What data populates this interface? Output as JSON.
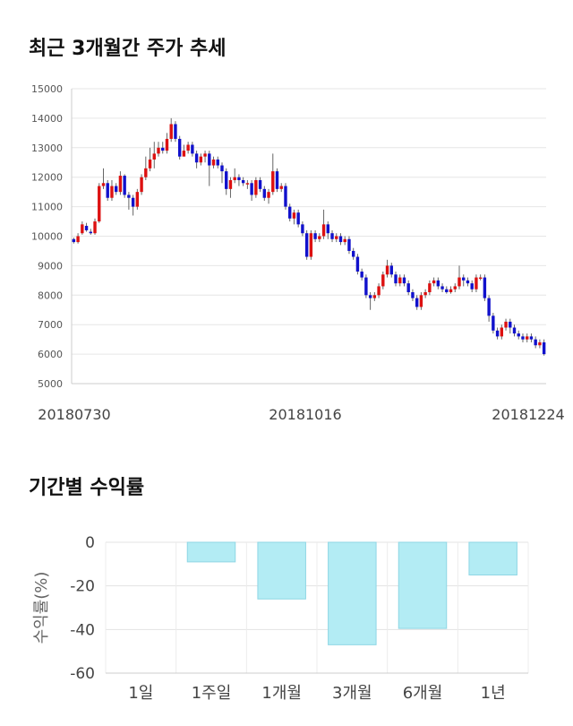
{
  "section1": {
    "title": "최근 3개월간 주가 추세"
  },
  "section2": {
    "title": "기간별 수익률"
  },
  "chart_data": [
    {
      "type": "candlestick",
      "ylim": [
        5000,
        15000
      ],
      "yticks": [
        5000,
        6000,
        7000,
        8000,
        9000,
        10000,
        11000,
        12000,
        13000,
        14000,
        15000
      ],
      "xtick_labels": [
        "20180730",
        "20181016",
        "20181224"
      ],
      "grid": true,
      "up_color": "#dd1111",
      "down_color": "#1111cc",
      "candles": [
        [
          9900,
          9800,
          9950,
          9750
        ],
        [
          9800,
          10000,
          10100,
          9750
        ],
        [
          10100,
          10400,
          10500,
          10050
        ],
        [
          10350,
          10200,
          10450,
          10150
        ],
        [
          10150,
          10100,
          10250,
          10050
        ],
        [
          10100,
          10500,
          10600,
          10050
        ],
        [
          10500,
          11700,
          11800,
          10450
        ],
        [
          11700,
          11800,
          12300,
          11600
        ],
        [
          11800,
          11300,
          11900,
          11200
        ],
        [
          11300,
          11700,
          11900,
          11200
        ],
        [
          11700,
          11500,
          11800,
          11400
        ],
        [
          11500,
          12050,
          12200,
          11400
        ],
        [
          12050,
          11400,
          12100,
          11300
        ],
        [
          11400,
          11300,
          11500,
          10900
        ],
        [
          11300,
          11000,
          11400,
          10700
        ],
        [
          11000,
          11500,
          11600,
          10900
        ],
        [
          11500,
          12000,
          12100,
          11400
        ],
        [
          12000,
          12300,
          12700,
          11900
        ],
        [
          12300,
          12600,
          13000,
          12200
        ],
        [
          12600,
          12800,
          13200,
          12300
        ],
        [
          12800,
          13000,
          13200,
          12700
        ],
        [
          13000,
          12900,
          13200,
          12800
        ],
        [
          12900,
          13300,
          13500,
          12800
        ],
        [
          13300,
          13800,
          14000,
          13200
        ],
        [
          13800,
          13300,
          13900,
          13200
        ],
        [
          13300,
          12700,
          13400,
          12600
        ],
        [
          12700,
          12900,
          13100,
          12800
        ],
        [
          12900,
          13100,
          13200,
          12800
        ],
        [
          13100,
          12800,
          13200,
          12700
        ],
        [
          12800,
          12500,
          12900,
          12300
        ],
        [
          12500,
          12700,
          12800,
          12400
        ],
        [
          12700,
          12800,
          12900,
          12500
        ],
        [
          12800,
          12400,
          12900,
          11700
        ],
        [
          12400,
          12600,
          12700,
          12300
        ],
        [
          12600,
          12400,
          12700,
          12300
        ],
        [
          12400,
          12200,
          12500,
          11800
        ],
        [
          12200,
          11600,
          12300,
          11400
        ],
        [
          11600,
          11900,
          12000,
          11300
        ],
        [
          11900,
          12000,
          12300,
          11800
        ],
        [
          12000,
          11900,
          12100,
          11700
        ],
        [
          11900,
          11800,
          12000,
          11700
        ],
        [
          11800,
          11800,
          11900,
          11600
        ],
        [
          11800,
          11400,
          11900,
          11200
        ],
        [
          11400,
          11900,
          12000,
          11300
        ],
        [
          11900,
          11600,
          12000,
          11500
        ],
        [
          11600,
          11300,
          11700,
          11200
        ],
        [
          11300,
          11500,
          11600,
          11100
        ],
        [
          11500,
          12200,
          12800,
          11400
        ],
        [
          12200,
          11600,
          12300,
          11500
        ],
        [
          11600,
          11700,
          11800,
          11500
        ],
        [
          11700,
          11000,
          11800,
          10900
        ],
        [
          11000,
          10600,
          11100,
          10500
        ],
        [
          10600,
          10800,
          10900,
          10400
        ],
        [
          10800,
          10400,
          10900,
          10300
        ],
        [
          10400,
          10100,
          10500,
          10000
        ],
        [
          10100,
          9300,
          10200,
          9200
        ],
        [
          9300,
          10100,
          10200,
          9200
        ],
        [
          10100,
          9900,
          10200,
          9800
        ],
        [
          9900,
          10000,
          10100,
          9800
        ],
        [
          10000,
          10400,
          10900,
          9900
        ],
        [
          10400,
          10100,
          10500,
          9900
        ],
        [
          10100,
          9900,
          10200,
          9800
        ],
        [
          9900,
          10000,
          10100,
          9800
        ],
        [
          10000,
          9800,
          10100,
          9700
        ],
        [
          9800,
          9900,
          10000,
          9700
        ],
        [
          9900,
          9500,
          10000,
          9400
        ],
        [
          9500,
          9300,
          9600,
          9200
        ],
        [
          9300,
          8800,
          9400,
          8700
        ],
        [
          8800,
          8600,
          8900,
          8500
        ],
        [
          8600,
          8000,
          8700,
          7900
        ],
        [
          8000,
          7900,
          8100,
          7500
        ],
        [
          7900,
          8000,
          8100,
          7800
        ],
        [
          8000,
          8300,
          8400,
          7900
        ],
        [
          8300,
          8700,
          8800,
          8200
        ],
        [
          8700,
          9000,
          9200,
          8600
        ],
        [
          9000,
          8700,
          9100,
          8600
        ],
        [
          8700,
          8400,
          8800,
          8300
        ],
        [
          8400,
          8600,
          8700,
          8300
        ],
        [
          8600,
          8400,
          8700,
          8300
        ],
        [
          8400,
          8100,
          8500,
          8000
        ],
        [
          8100,
          7900,
          8200,
          7800
        ],
        [
          7900,
          7600,
          8000,
          7500
        ],
        [
          7600,
          8000,
          8100,
          7500
        ],
        [
          8000,
          8100,
          8200,
          7900
        ],
        [
          8100,
          8400,
          8500,
          8000
        ],
        [
          8400,
          8500,
          8600,
          8300
        ],
        [
          8500,
          8300,
          8600,
          8200
        ],
        [
          8300,
          8200,
          8400,
          8100
        ],
        [
          8200,
          8100,
          8300,
          8050
        ],
        [
          8100,
          8200,
          8300,
          8050
        ],
        [
          8200,
          8300,
          8400,
          8100
        ],
        [
          8300,
          8600,
          9000,
          8200
        ],
        [
          8600,
          8500,
          8700,
          8300
        ],
        [
          8500,
          8400,
          8600,
          8300
        ],
        [
          8400,
          8200,
          8500,
          8100
        ],
        [
          8200,
          8600,
          8700,
          8100
        ],
        [
          8600,
          8600,
          8700,
          8500
        ],
        [
          8600,
          7900,
          8700,
          7800
        ],
        [
          7900,
          7300,
          8000,
          7100
        ],
        [
          7300,
          6800,
          7400,
          6700
        ],
        [
          6800,
          6600,
          6900,
          6500
        ],
        [
          6600,
          6900,
          7000,
          6500
        ],
        [
          6900,
          7100,
          7200,
          6800
        ],
        [
          7100,
          6900,
          7200,
          6700
        ],
        [
          6900,
          6700,
          7000,
          6600
        ],
        [
          6700,
          6600,
          6800,
          6500
        ],
        [
          6600,
          6500,
          6700,
          6400
        ],
        [
          6500,
          6600,
          6700,
          6400
        ],
        [
          6600,
          6500,
          6700,
          6400
        ],
        [
          6500,
          6300,
          6600,
          6200
        ],
        [
          6300,
          6400,
          6500,
          6200
        ],
        [
          6400,
          6000,
          6500,
          5950
        ]
      ]
    },
    {
      "type": "bar",
      "categories": [
        "1일",
        "1주일",
        "1개월",
        "3개월",
        "6개월",
        "1년"
      ],
      "values": [
        0,
        -9,
        -26,
        -47,
        -39.5,
        -15
      ],
      "ylim": [
        -60,
        0
      ],
      "yticks": [
        0,
        -20,
        -40,
        -60
      ],
      "ylabel": "수익률(%)",
      "bar_color": "#b3ecf4",
      "bar_edge": "#8fd6e4",
      "grid": true
    }
  ]
}
